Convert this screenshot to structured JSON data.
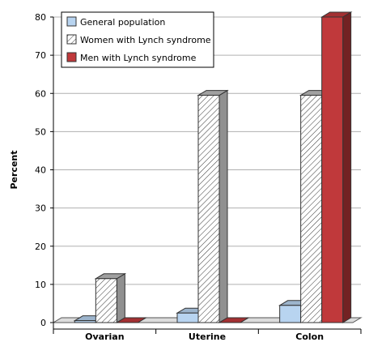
{
  "chart_data": {
    "type": "bar",
    "title": "",
    "xlabel": "",
    "ylabel": "Percent",
    "ylim": [
      0,
      80
    ],
    "yticks": [
      0,
      10,
      20,
      30,
      40,
      50,
      60,
      70,
      80
    ],
    "grid": true,
    "legend_position": "top-left",
    "categories": [
      "Ovarian",
      "Uterine",
      "Colon"
    ],
    "series": [
      {
        "name": "General population",
        "values": [
          0.5,
          2.5,
          4.5
        ],
        "color": "#b8d4f0",
        "pattern": "solid"
      },
      {
        "name": "Women with Lynch syndrome",
        "values": [
          11.5,
          59.5,
          59.5
        ],
        "color": "#ffffff",
        "pattern": "hatched"
      },
      {
        "name": "Men with Lynch syndrome",
        "values": [
          0,
          0,
          80
        ],
        "color": "#c0393b",
        "pattern": "solid"
      }
    ]
  }
}
